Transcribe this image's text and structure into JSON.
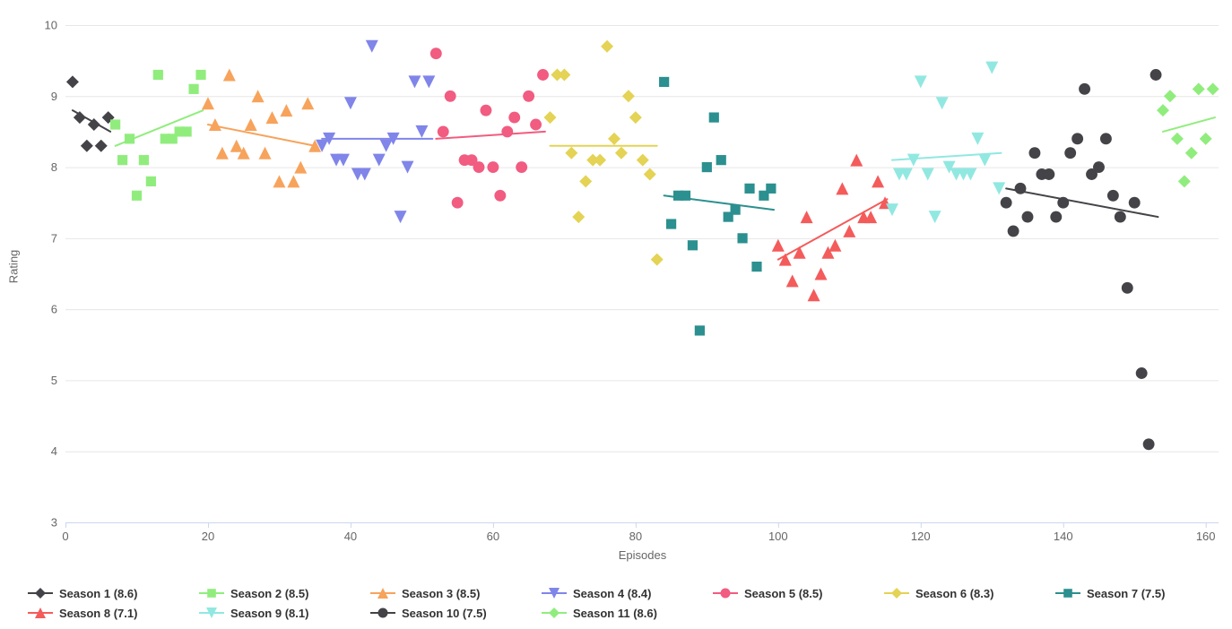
{
  "chart_data": {
    "type": "scatter",
    "title": "",
    "xlabel": "Episodes",
    "ylabel": "Rating",
    "xlim": [
      0,
      161.8
    ],
    "ylim": [
      3,
      10
    ],
    "xticks": [
      0,
      20,
      40,
      60,
      80,
      100,
      120,
      140,
      160
    ],
    "yticks": [
      3,
      4,
      5,
      6,
      7,
      8,
      9,
      10
    ],
    "grid": "horizontal",
    "legend_position": "bottom",
    "colors": {
      "grid": "#e6e6e6",
      "axis": "#ccd6eb",
      "tick_label": "#666666",
      "legend_text": "#333333",
      "background": "#ffffff"
    },
    "series": [
      {
        "name": "Season 1 (8.6)",
        "average": 8.6,
        "color": "#434348",
        "marker": "diamond",
        "points": [
          [
            1,
            9.2
          ],
          [
            2,
            8.7
          ],
          [
            3,
            8.3
          ],
          [
            4,
            8.6
          ],
          [
            5,
            8.3
          ],
          [
            6,
            8.7
          ]
        ],
        "trend": [
          [
            1,
            8.8
          ],
          [
            6.3,
            8.5
          ]
        ]
      },
      {
        "name": "Season 2 (8.5)",
        "average": 8.5,
        "color": "#90ed7d",
        "marker": "square",
        "points": [
          [
            7,
            8.6
          ],
          [
            8,
            8.1
          ],
          [
            9,
            8.4
          ],
          [
            10,
            7.6
          ],
          [
            11,
            8.1
          ],
          [
            12,
            7.8
          ],
          [
            13,
            9.3
          ],
          [
            14,
            8.4
          ],
          [
            15,
            8.4
          ],
          [
            16,
            8.5
          ],
          [
            17,
            8.5
          ],
          [
            18,
            9.1
          ],
          [
            19,
            9.3
          ]
        ],
        "trend": [
          [
            7,
            8.3
          ],
          [
            19.3,
            8.8
          ]
        ]
      },
      {
        "name": "Season 3 (8.5)",
        "average": 8.5,
        "color": "#f7a35c",
        "marker": "triangle",
        "points": [
          [
            20,
            8.9
          ],
          [
            21,
            8.6
          ],
          [
            22,
            8.2
          ],
          [
            23,
            9.3
          ],
          [
            24,
            8.3
          ],
          [
            25,
            8.2
          ],
          [
            26,
            8.6
          ],
          [
            27,
            9.0
          ],
          [
            28,
            8.2
          ],
          [
            29,
            8.7
          ],
          [
            30,
            7.8
          ],
          [
            31,
            8.8
          ],
          [
            32,
            7.8
          ],
          [
            33,
            8.0
          ],
          [
            34,
            8.9
          ],
          [
            35,
            8.3
          ]
        ],
        "trend": [
          [
            20,
            8.6
          ],
          [
            35,
            8.3
          ]
        ]
      },
      {
        "name": "Season 4 (8.4)",
        "average": 8.4,
        "color": "#8085e9",
        "marker": "triangle-down",
        "points": [
          [
            36,
            8.3
          ],
          [
            37,
            8.4
          ],
          [
            38,
            8.1
          ],
          [
            39,
            8.1
          ],
          [
            40,
            8.9
          ],
          [
            41,
            7.9
          ],
          [
            42,
            7.9
          ],
          [
            43,
            9.7
          ],
          [
            44,
            8.1
          ],
          [
            45,
            8.3
          ],
          [
            46,
            8.4
          ],
          [
            47,
            7.3
          ],
          [
            48,
            8.0
          ],
          [
            49,
            9.2
          ],
          [
            50,
            8.5
          ],
          [
            51,
            9.2
          ]
        ],
        "trend": [
          [
            36,
            8.4
          ],
          [
            51.5,
            8.4
          ]
        ]
      },
      {
        "name": "Season 5 (8.5)",
        "average": 8.5,
        "color": "#f15c80",
        "marker": "circle",
        "points": [
          [
            52,
            9.6
          ],
          [
            53,
            8.5
          ],
          [
            54,
            9.0
          ],
          [
            55,
            7.5
          ],
          [
            56,
            8.1
          ],
          [
            57,
            8.1
          ],
          [
            58,
            8.0
          ],
          [
            59,
            8.8
          ],
          [
            60,
            8.0
          ],
          [
            61,
            7.6
          ],
          [
            62,
            8.5
          ],
          [
            63,
            8.7
          ],
          [
            64,
            8.0
          ],
          [
            65,
            9.0
          ],
          [
            66,
            8.6
          ],
          [
            67,
            9.3
          ]
        ],
        "trend": [
          [
            52,
            8.4
          ],
          [
            67.3,
            8.5
          ]
        ]
      },
      {
        "name": "Season 6 (8.3)",
        "average": 8.3,
        "color": "#e4d354",
        "marker": "diamond",
        "points": [
          [
            68,
            8.7
          ],
          [
            69,
            9.3
          ],
          [
            70,
            9.3
          ],
          [
            71,
            8.2
          ],
          [
            72,
            7.3
          ],
          [
            73,
            7.8
          ],
          [
            74,
            8.1
          ],
          [
            75,
            8.1
          ],
          [
            76,
            9.7
          ],
          [
            77,
            8.4
          ],
          [
            78,
            8.2
          ],
          [
            79,
            9.0
          ],
          [
            80,
            8.7
          ],
          [
            81,
            8.1
          ],
          [
            82,
            7.9
          ],
          [
            83,
            6.7
          ]
        ],
        "trend": [
          [
            68,
            8.3
          ],
          [
            83,
            8.3
          ]
        ]
      },
      {
        "name": "Season 7 (7.5)",
        "average": 7.5,
        "color": "#2b908f",
        "marker": "square",
        "points": [
          [
            84,
            9.2
          ],
          [
            85,
            7.2
          ],
          [
            86,
            7.6
          ],
          [
            87,
            7.6
          ],
          [
            88,
            6.9
          ],
          [
            89,
            5.7
          ],
          [
            90,
            8.0
          ],
          [
            91,
            8.7
          ],
          [
            92,
            8.1
          ],
          [
            93,
            7.3
          ],
          [
            94,
            7.4
          ],
          [
            95,
            7.0
          ],
          [
            96,
            7.7
          ],
          [
            97,
            6.6
          ],
          [
            98,
            7.6
          ],
          [
            99,
            7.7
          ]
        ],
        "trend": [
          [
            84,
            7.6
          ],
          [
            99.4,
            7.4
          ]
        ]
      },
      {
        "name": "Season 8 (7.1)",
        "average": 7.1,
        "color": "#f45b5b",
        "marker": "triangle",
        "points": [
          [
            100,
            6.9
          ],
          [
            101,
            6.7
          ],
          [
            102,
            6.4
          ],
          [
            103,
            6.8
          ],
          [
            104,
            7.3
          ],
          [
            105,
            6.2
          ],
          [
            106,
            6.5
          ],
          [
            107,
            6.8
          ],
          [
            108,
            6.9
          ],
          [
            109,
            7.7
          ],
          [
            110,
            7.1
          ],
          [
            111,
            8.1
          ],
          [
            112,
            7.3
          ],
          [
            113,
            7.3
          ],
          [
            114,
            7.8
          ],
          [
            115,
            7.5
          ]
        ],
        "trend": [
          [
            100,
            6.7
          ],
          [
            115.3,
            7.55
          ]
        ]
      },
      {
        "name": "Season 9 (8.1)",
        "average": 8.1,
        "color": "#91e8e1",
        "marker": "triangle-down",
        "points": [
          [
            116,
            7.4
          ],
          [
            117,
            7.9
          ],
          [
            118,
            7.9
          ],
          [
            119,
            8.1
          ],
          [
            120,
            9.2
          ],
          [
            121,
            7.9
          ],
          [
            122,
            7.3
          ],
          [
            123,
            8.9
          ],
          [
            124,
            8.0
          ],
          [
            125,
            7.9
          ],
          [
            126,
            7.9
          ],
          [
            127,
            7.9
          ],
          [
            128,
            8.4
          ],
          [
            129,
            8.1
          ],
          [
            130,
            9.4
          ],
          [
            131,
            7.7
          ]
        ],
        "trend": [
          [
            116,
            8.1
          ],
          [
            131.3,
            8.2
          ]
        ]
      },
      {
        "name": "Season 10 (7.5)",
        "average": 7.5,
        "color": "#434348",
        "marker": "circle",
        "points": [
          [
            132,
            7.5
          ],
          [
            133,
            7.1
          ],
          [
            134,
            7.7
          ],
          [
            135,
            7.3
          ],
          [
            136,
            8.2
          ],
          [
            137,
            7.9
          ],
          [
            138,
            7.9
          ],
          [
            139,
            7.3
          ],
          [
            140,
            7.5
          ],
          [
            141,
            8.2
          ],
          [
            142,
            8.4
          ],
          [
            143,
            9.1
          ],
          [
            144,
            7.9
          ],
          [
            145,
            8.0
          ],
          [
            146,
            8.4
          ],
          [
            147,
            7.6
          ],
          [
            148,
            7.3
          ],
          [
            149,
            6.3
          ],
          [
            150,
            7.5
          ],
          [
            151,
            5.1
          ],
          [
            152,
            4.1
          ],
          [
            153,
            9.3
          ]
        ],
        "trend": [
          [
            132,
            7.7
          ],
          [
            153.3,
            7.3
          ]
        ]
      },
      {
        "name": "Season 11 (8.6)",
        "average": 8.6,
        "color": "#90ed7d",
        "marker": "diamond",
        "points": [
          [
            154,
            8.8
          ],
          [
            155,
            9.0
          ],
          [
            156,
            8.4
          ],
          [
            157,
            7.8
          ],
          [
            158,
            8.2
          ],
          [
            159,
            9.1
          ],
          [
            160,
            8.4
          ],
          [
            161,
            9.1
          ]
        ],
        "trend": [
          [
            154,
            8.5
          ],
          [
            161.3,
            8.7
          ]
        ]
      }
    ]
  }
}
